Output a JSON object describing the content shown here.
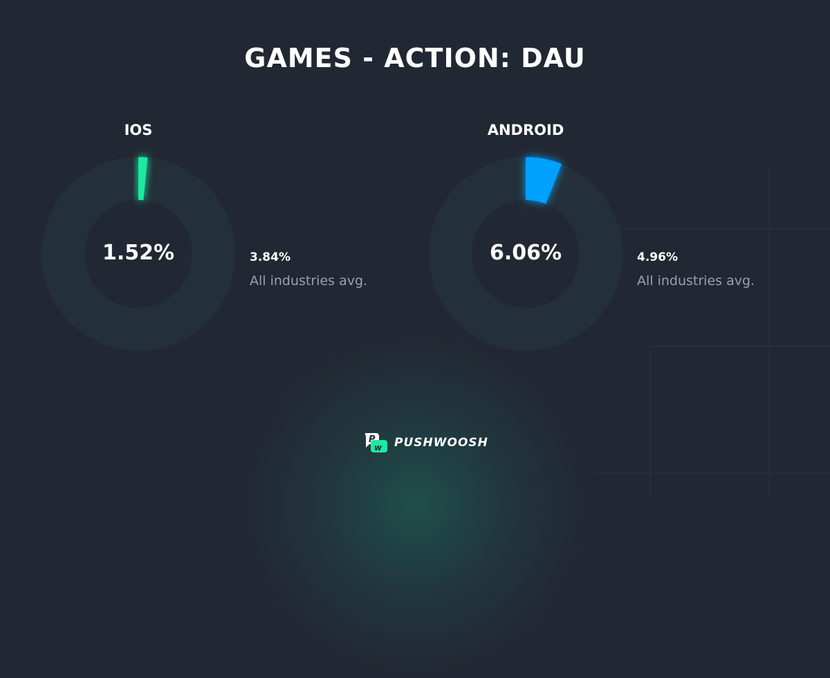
{
  "chart_data": {
    "type": "pie",
    "title": "GAMES - ACTION:  DAU",
    "charts": [
      {
        "label": "IOS",
        "value": 1.52,
        "value_label": "1.52%",
        "avg_value": "3.84%",
        "avg_label": "All industries avg.",
        "color": "#1de9a0"
      },
      {
        "label": "ANDROID",
        "value": 6.06,
        "value_label": "6.06%",
        "avg_value": "4.96%",
        "avg_label": "All industries avg.",
        "color": "#00a0ff"
      }
    ],
    "ring_color": "#243039"
  },
  "brand": {
    "name": "PUSHWOOSH",
    "icon": "pushwoosh-logo-icon"
  }
}
